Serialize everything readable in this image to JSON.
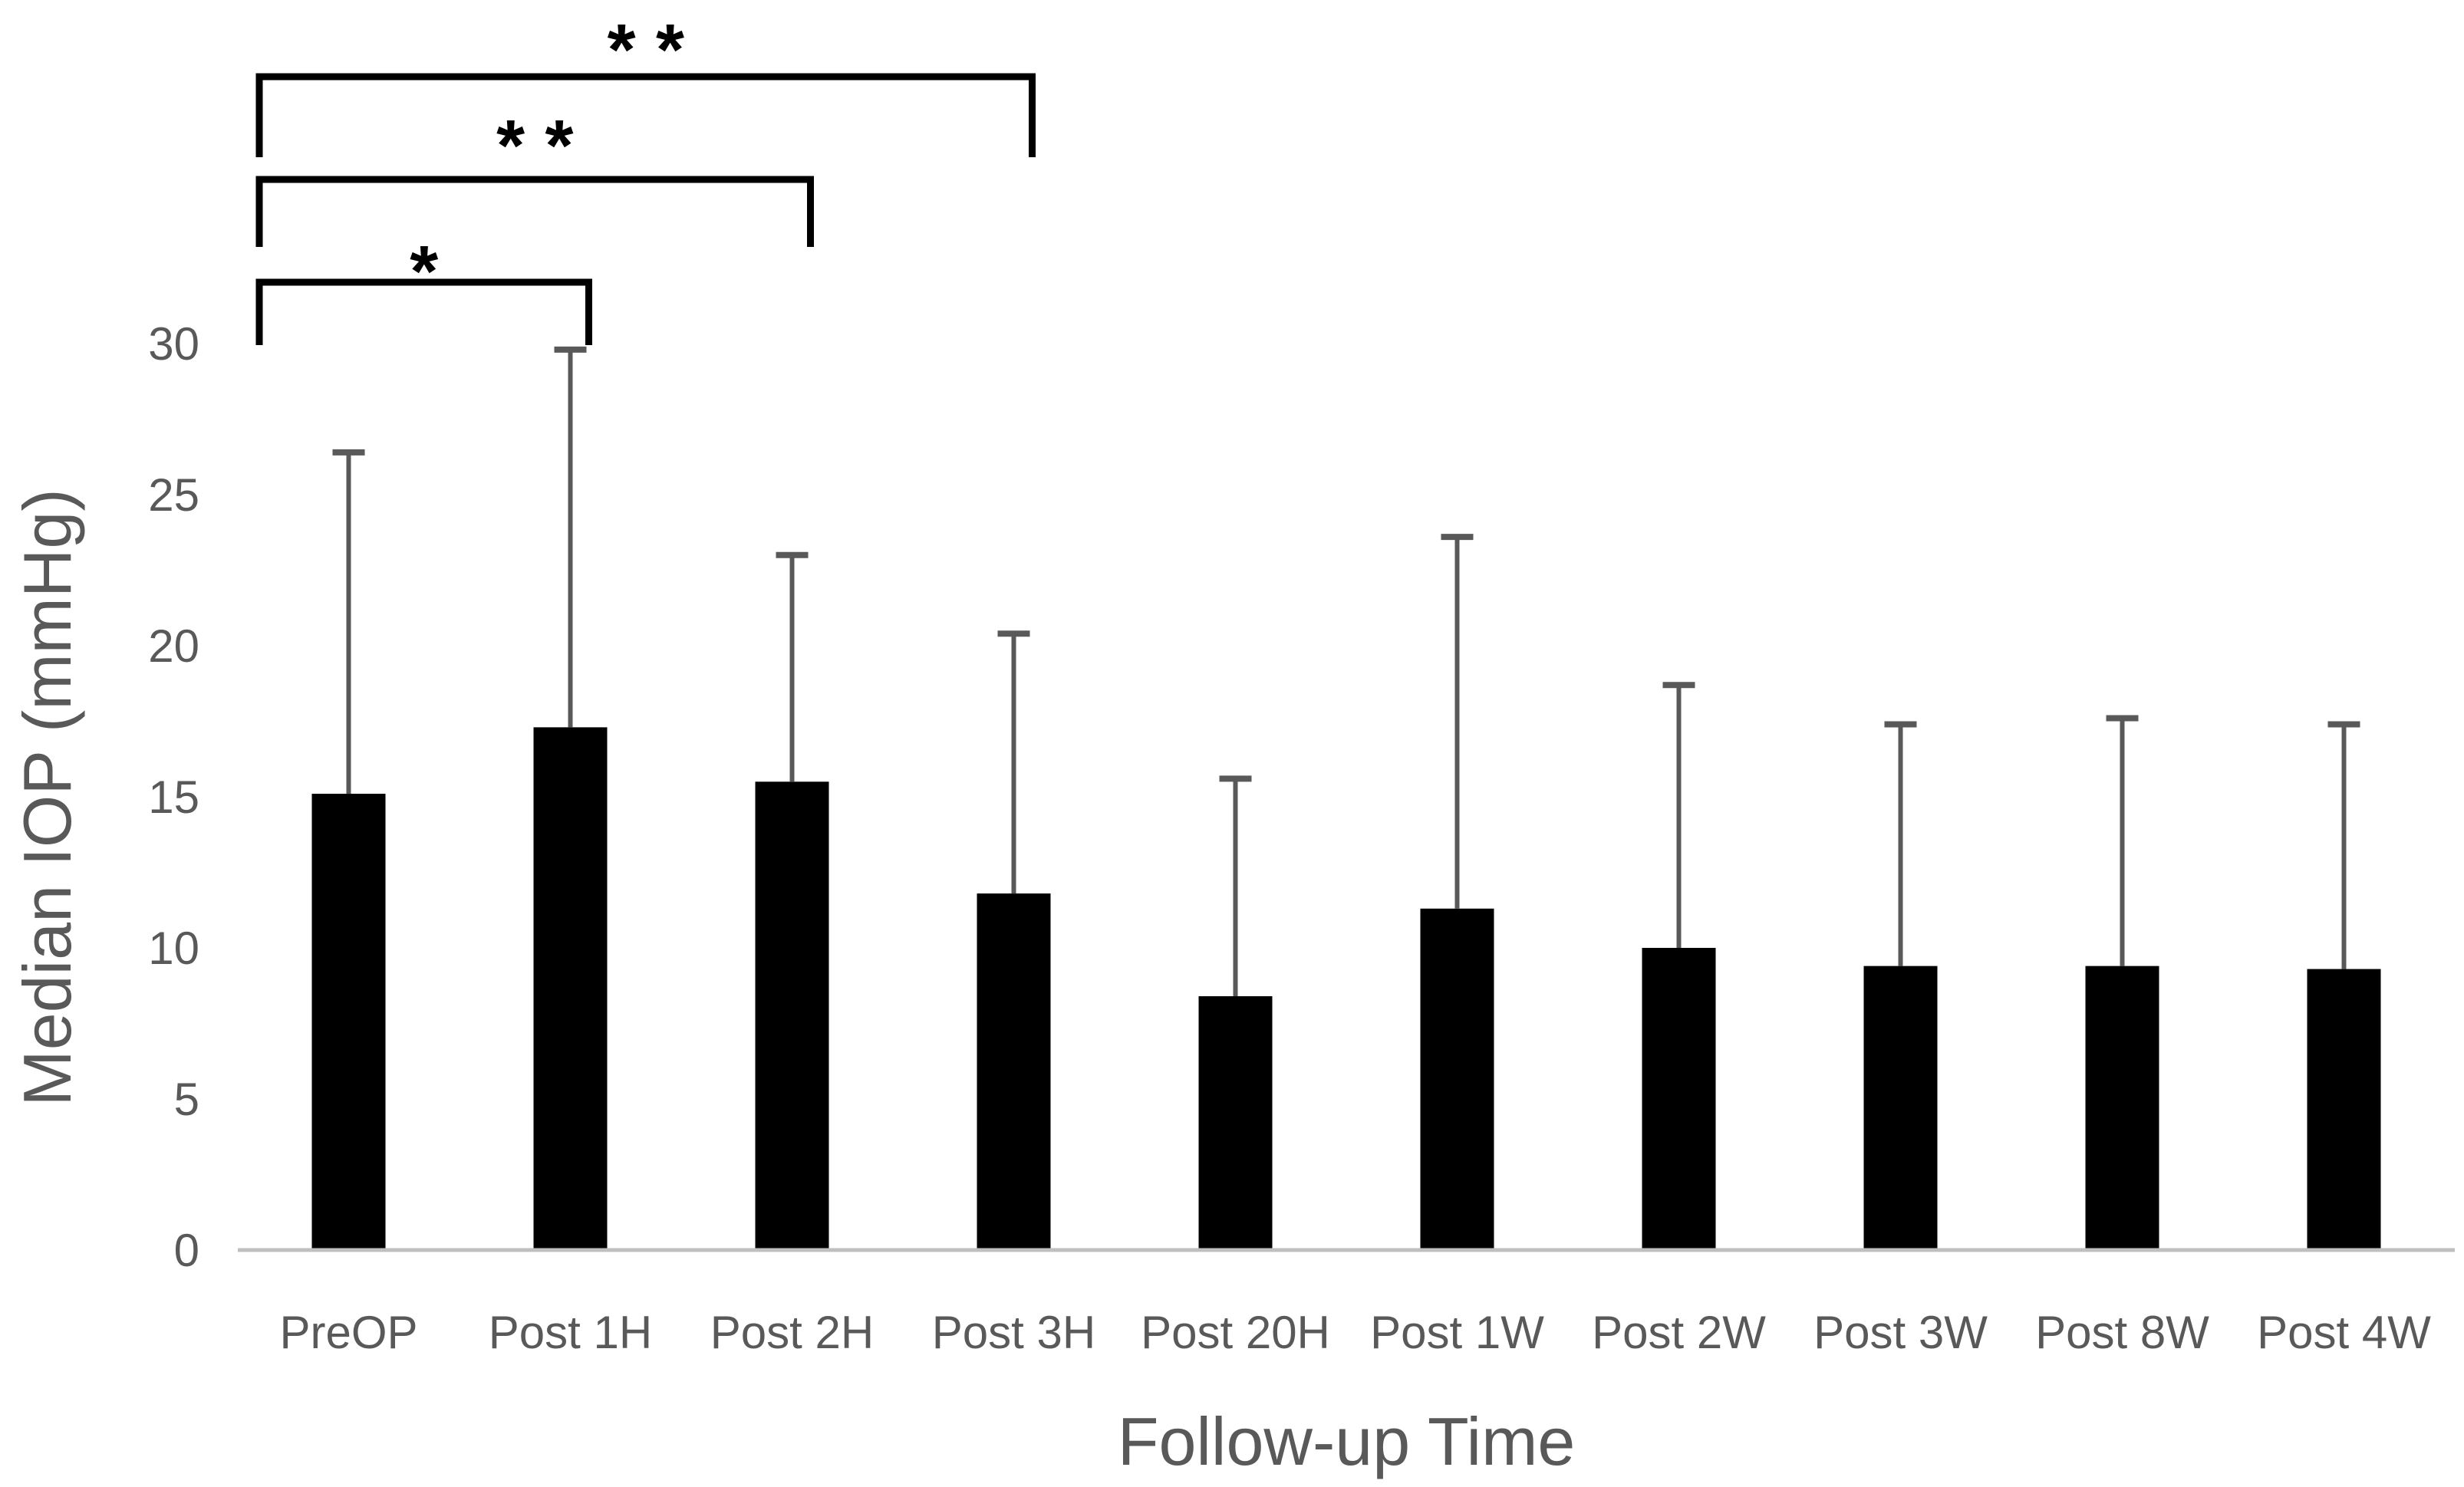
{
  "chart_data": {
    "type": "bar",
    "title": "",
    "xlabel": "Follow-up Time",
    "ylabel": "Median IOP (mmHg)",
    "categories": [
      "PreOP",
      "Post 1H",
      "Post 2H",
      "Post 3H",
      "Post 20H",
      "Post 1W",
      "Post 2W",
      "Post 3W",
      "Post 8W",
      "Post 4W"
    ],
    "values": [
      15.1,
      17.3,
      15.5,
      11.8,
      8.4,
      11.3,
      10.0,
      9.4,
      9.4,
      9.3
    ],
    "error_upper": [
      26.4,
      29.8,
      23.0,
      20.4,
      15.6,
      23.6,
      18.7,
      17.4,
      17.6,
      17.4
    ],
    "yticks": [
      0,
      5,
      10,
      15,
      20,
      25,
      30
    ],
    "ylim": [
      0,
      30
    ],
    "grid": false,
    "legend": false,
    "colors": {
      "bar": "#000000",
      "error_bar": "#595959",
      "axis_line": "#BFBFBF",
      "text": "#595959",
      "significance": "#000000"
    },
    "significance": [
      {
        "from": "PreOP",
        "to": "Post 1H",
        "from_index": 0,
        "to_index": 1,
        "label": "*",
        "level": 1
      },
      {
        "from": "PreOP",
        "to": "Post 2H",
        "from_index": 0,
        "to_index": 2,
        "label": "* *",
        "level": 2
      },
      {
        "from": "PreOP",
        "to": "Post 3H",
        "from_index": 0,
        "to_index": 3,
        "label": "* *",
        "level": 3
      }
    ]
  }
}
